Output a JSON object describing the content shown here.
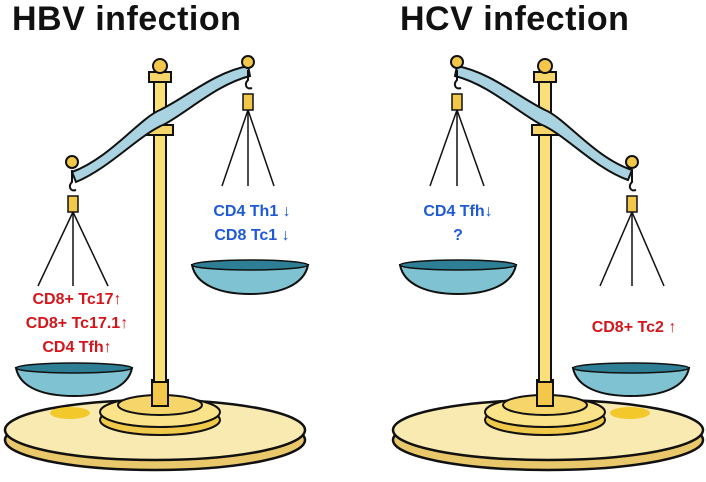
{
  "left_panel": {
    "title": "HBV infection",
    "left_pan_labels": [
      "CD8+ Tc17↑",
      "CD8+ Tc17.1↑",
      "CD4 Tfh↑"
    ],
    "right_pan_labels": [
      "CD4 Th1 ↓",
      "CD8 Tc1 ↓"
    ]
  },
  "right_panel": {
    "title": "HCV infection",
    "left_pan_labels": [
      "CD4 Tfh↓",
      "?"
    ],
    "right_pan_labels": [
      "CD8+ Tc2 ↑"
    ]
  },
  "colors": {
    "increase": "#d4161b",
    "decrease": "#1f5ad6",
    "base": "#f7e9a8",
    "beam": "#a9d3e0",
    "pan": "#7fc3d3"
  }
}
